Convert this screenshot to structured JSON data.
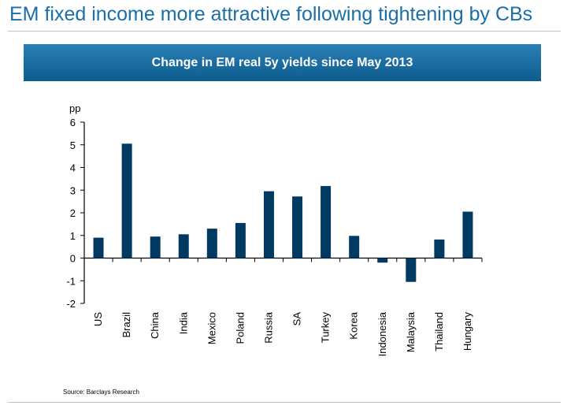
{
  "slide": {
    "title": "EM fixed income more attractive following tightening by CBs",
    "banner": "Change in EM real 5y yields since May 2013",
    "source": "Source: Barclays Research"
  },
  "colors": {
    "bar": "#003a63",
    "title": "#1a6fa8",
    "banner": "#1770a6"
  },
  "chart_data": {
    "type": "bar",
    "title": "Change in EM real 5y yields since May 2013",
    "ylabel": "pp",
    "xlabel": "",
    "ylim": [
      -2,
      6
    ],
    "yticks": [
      6,
      5,
      4,
      3,
      2,
      1,
      0,
      -1,
      -2
    ],
    "grid": false,
    "categories": [
      "US",
      "Brazil",
      "China",
      "India",
      "Mexico",
      "Poland",
      "Russia",
      "SA",
      "Turkey",
      "Korea",
      "Indonesia",
      "Malaysia",
      "Thailand",
      "Hungary"
    ],
    "values": [
      0.9,
      5.05,
      0.95,
      1.05,
      1.3,
      1.55,
      2.95,
      2.72,
      3.18,
      0.98,
      -0.2,
      -1.05,
      0.82,
      2.05
    ]
  }
}
